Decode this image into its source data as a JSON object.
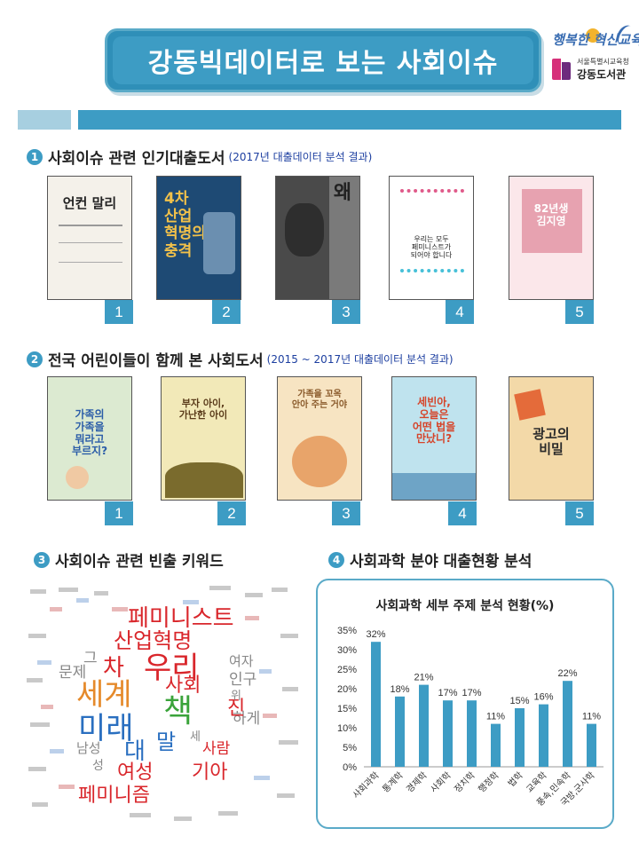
{
  "header": {
    "title": "강동빅데이터로 보는 사회이슈",
    "logo_slogan": "행복한 혁신교육",
    "logo_org_small": "서울특별시교육청",
    "logo_org": "강동도서관"
  },
  "section1": {
    "number": "1",
    "title": "사회이슈 관련 인기대출도서",
    "subtitle": "(2017년 대출데이터 분석 결과)",
    "books": [
      {
        "rank": "1",
        "cover_title": "언컨 말리"
      },
      {
        "rank": "2",
        "cover_title": "4차\n산업\n혁명의\n충격"
      },
      {
        "rank": "3",
        "cover_title": "왜"
      },
      {
        "rank": "4",
        "cover_title": "우리는 모두\n페미니스트가\n되어야 합니다"
      },
      {
        "rank": "5",
        "cover_title": "82년생\n김지영"
      }
    ]
  },
  "section2": {
    "number": "2",
    "title": "전국 어린이들이 함께 본 사회도서",
    "subtitle": "(2015 ~ 2017년 대출데이터 분석 결과)",
    "books": [
      {
        "rank": "1",
        "cover_title": "가족의\n가족을\n뭐라고\n부르지?"
      },
      {
        "rank": "2",
        "cover_title": "부자 아이,\n가난한 아이"
      },
      {
        "rank": "3",
        "cover_title": "가족을 꼬옥\n안아 주는 거야"
      },
      {
        "rank": "4",
        "cover_title": "세빈아,\n오늘은\n어떤 법을\n만났니?"
      },
      {
        "rank": "5",
        "cover_title": "광고의\n비밀"
      }
    ]
  },
  "section3": {
    "number": "3",
    "title": "사회이슈 관련 빈출 키워드",
    "words": [
      {
        "text": "페미니스트",
        "color": "#d9262b"
      },
      {
        "text": "산업혁명",
        "color": "#d9262b"
      },
      {
        "text": "우리",
        "color": "#d9262b"
      },
      {
        "text": "세계",
        "color": "#e58a2b"
      },
      {
        "text": "책",
        "color": "#3aa33a"
      },
      {
        "text": "미래",
        "color": "#2a6fc0"
      },
      {
        "text": "사회",
        "color": "#d9262b"
      },
      {
        "text": "차",
        "color": "#d9262b"
      },
      {
        "text": "대",
        "color": "#2a6fc0"
      },
      {
        "text": "말",
        "color": "#2a6fc0"
      },
      {
        "text": "여성",
        "color": "#d9262b"
      },
      {
        "text": "기아",
        "color": "#d9262b"
      },
      {
        "text": "페미니즘",
        "color": "#d9262b"
      },
      {
        "text": "인구",
        "color": "#888888"
      },
      {
        "text": "여자",
        "color": "#888888"
      },
      {
        "text": "문제",
        "color": "#888888"
      },
      {
        "text": "남성",
        "color": "#888888"
      },
      {
        "text": "사람",
        "color": "#d9262b"
      },
      {
        "text": "하게",
        "color": "#888888"
      },
      {
        "text": "그",
        "color": "#888888"
      },
      {
        "text": "성",
        "color": "#888888"
      },
      {
        "text": "세",
        "color": "#888888"
      },
      {
        "text": "진",
        "color": "#d9262b"
      },
      {
        "text": "위",
        "color": "#888888"
      }
    ]
  },
  "section4": {
    "number": "4",
    "title": "사회과학 분야 대출현황 분석"
  },
  "chart_data": {
    "type": "bar",
    "title": "사회과학 세부 주제 분석 현황(%)",
    "categories": [
      "사회과학",
      "통계학",
      "경제학",
      "사회학",
      "정치학",
      "행정학",
      "법학",
      "교육학",
      "풍속,민속학",
      "국방,군사학"
    ],
    "values": [
      32,
      18,
      21,
      17,
      17,
      11,
      15,
      16,
      22,
      11
    ],
    "value_labels": [
      "32%",
      "18%",
      "21%",
      "17%",
      "17%",
      "11%",
      "15%",
      "16%",
      "22%",
      "11%"
    ],
    "yticks": [
      "0%",
      "5%",
      "10%",
      "15%",
      "20%",
      "25%",
      "30%",
      "35%"
    ],
    "ylim": [
      0,
      35
    ],
    "grid": false,
    "bar_color": "#3d9cc4"
  }
}
